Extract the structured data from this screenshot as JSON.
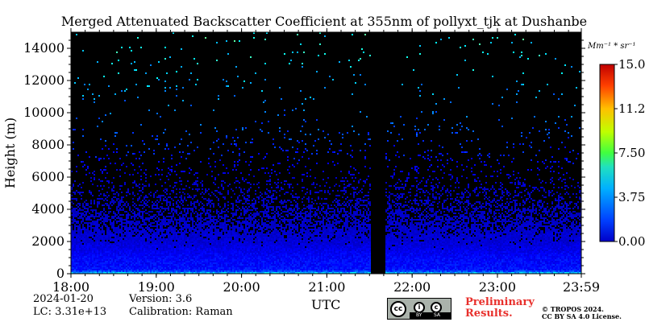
{
  "chart_data": {
    "type": "heatmap",
    "title": "Merged Attenuated Backscatter Coefficient at 355nm of pollyxt_tjk at Dushanbe",
    "xlabel": "UTC",
    "ylabel": "Height (m)",
    "x_tick_labels": [
      "18:00",
      "19:00",
      "20:00",
      "21:00",
      "22:00",
      "23:00",
      "23:59"
    ],
    "x_range_hours": [
      18.0,
      23.9833
    ],
    "y_ticks": [
      0,
      2000,
      4000,
      6000,
      8000,
      10000,
      12000,
      14000
    ],
    "y_tick_labels": [
      "0",
      "2000",
      "4000",
      "6000",
      "8000",
      "10000",
      "12000",
      "14000"
    ],
    "ylim": [
      0,
      15000
    ],
    "colorbar": {
      "unit_label": "Mm⁻¹ * sr⁻¹",
      "range": [
        0.0,
        15.0
      ],
      "ticks": [
        0.0,
        3.75,
        7.5,
        11.25,
        15.0
      ],
      "tick_labels": [
        "0.00",
        "3.75",
        "7.50",
        "11.25",
        "15.00"
      ],
      "colormap": "jet"
    },
    "data_gap_hours": [
      21.52,
      21.68
    ],
    "profile": {
      "description_values": "mean backscatter by height band",
      "height_m": [
        0,
        250,
        500,
        1000,
        1500,
        2000,
        2500,
        3000,
        4000,
        5000,
        6000,
        8000,
        10000,
        15000
      ],
      "mean_backscatter": [
        6.0,
        2.2,
        2.0,
        1.9,
        1.6,
        1.3,
        1.2,
        1.1,
        1.0,
        1.0,
        1.2,
        2.5,
        3.5,
        6.0
      ],
      "pixel_density": [
        1.0,
        1.0,
        1.0,
        1.0,
        1.0,
        0.95,
        0.85,
        0.7,
        0.45,
        0.25,
        0.1,
        0.04,
        0.015,
        0.01
      ]
    }
  },
  "footer": {
    "date": "2024-01-20",
    "version": "Version: 3.6",
    "lidar_constant": "LC: 3.31e+13",
    "calibration": "Calibration: Raman",
    "preliminary_line1": "Preliminary",
    "preliminary_line2": "Results.",
    "copyright_line1": "© TROPOS 2024.",
    "copyright_line2": "CC BY SA 4.0 License.",
    "license_badge": {
      "cc": "cc",
      "by": "BY",
      "sa": "SA"
    }
  },
  "colors": {
    "plot_background": "#000000",
    "preliminary_text": "#e8302c",
    "badge_background": "#aab2ab"
  }
}
